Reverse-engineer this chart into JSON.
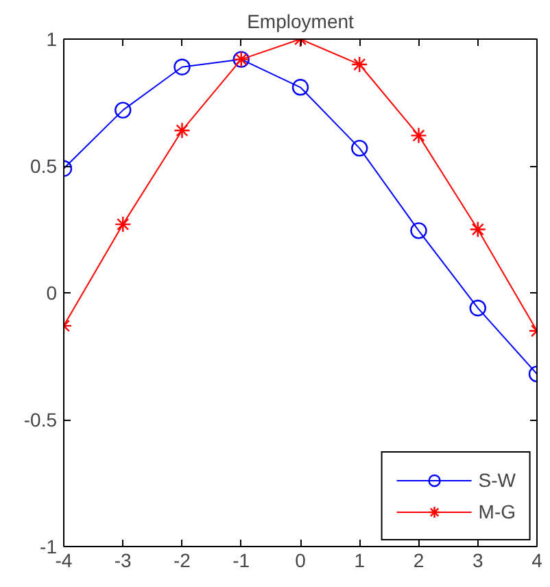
{
  "chart_data": {
    "type": "line",
    "title": "Employment",
    "x": [
      -4,
      -3,
      -2,
      -1,
      0,
      1,
      2,
      3,
      4
    ],
    "series": [
      {
        "name": "S-W",
        "color": "#0000ff",
        "marker": "circle",
        "values": [
          0.49,
          0.72,
          0.89,
          0.92,
          0.81,
          0.57,
          0.245,
          -0.06,
          -0.32
        ]
      },
      {
        "name": "M-G",
        "color": "#ff0000",
        "marker": "cross",
        "values": [
          -0.13,
          0.27,
          0.64,
          0.92,
          1.0,
          0.9,
          0.62,
          0.25,
          -0.15
        ]
      }
    ],
    "xlim": [
      -4,
      4
    ],
    "ylim": [
      -1,
      1
    ],
    "xticks": [
      -4,
      -3,
      -2,
      -1,
      0,
      1,
      2,
      3,
      4
    ],
    "yticks": [
      -1,
      -0.5,
      0,
      0.5,
      1
    ],
    "grid": false,
    "legend": "bottom right",
    "line_style": "solid"
  }
}
